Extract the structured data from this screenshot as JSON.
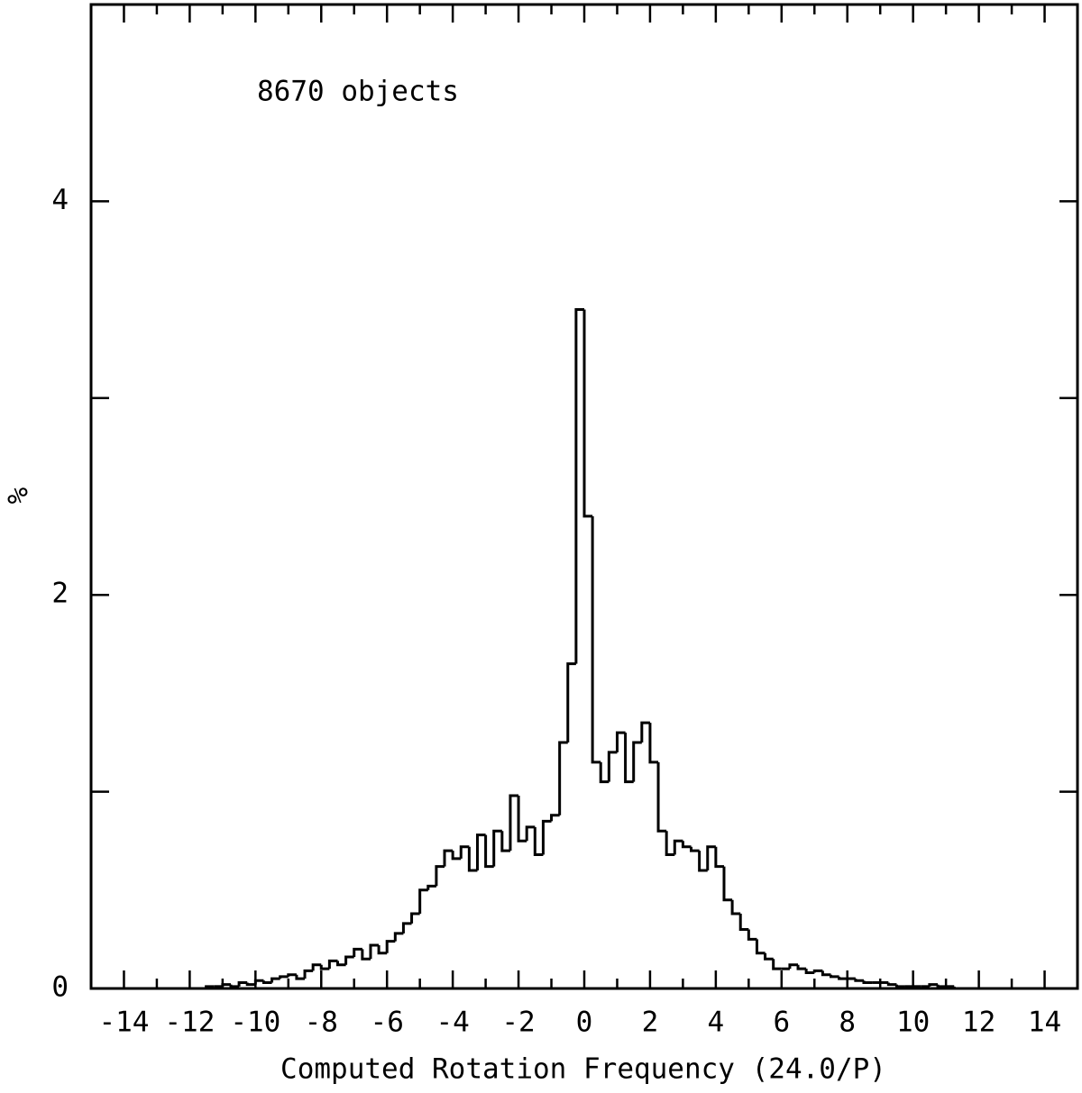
{
  "chart_data": {
    "type": "histogram",
    "xlabel": "Computed Rotation Frequency (24.0/P)",
    "ylabel": "%",
    "annotation": "8670 objects",
    "xlim": [
      -15,
      15
    ],
    "ylim": [
      0,
      5
    ],
    "xticks": [
      -14,
      -12,
      -10,
      -8,
      -6,
      -4,
      -2,
      0,
      2,
      4,
      6,
      8,
      10,
      12,
      14
    ],
    "xticks_minor": [
      -15,
      -13,
      -11,
      -9,
      -7,
      -5,
      -3,
      -1,
      1,
      3,
      5,
      7,
      9,
      11,
      13,
      15
    ],
    "yticks": [
      0,
      2,
      4
    ],
    "yticks_minor": [
      1,
      3
    ],
    "color": "#000000",
    "bins": [
      -12,
      -11.75,
      -11.5,
      -11.25,
      -11,
      -10.75,
      -10.5,
      -10.25,
      -10,
      -9.75,
      -9.5,
      -9.25,
      -9,
      -8.75,
      -8.5,
      -8.25,
      -8,
      -7.75,
      -7.5,
      -7.25,
      -7,
      -6.75,
      -6.5,
      -6.25,
      -6,
      -5.75,
      -5.5,
      -5.25,
      -5,
      -4.75,
      -4.5,
      -4.25,
      -4,
      -3.75,
      -3.5,
      -3.25,
      -3,
      -2.75,
      -2.5,
      -2.25,
      -2,
      -1.75,
      -1.5,
      -1.25,
      -1,
      -0.75,
      -0.5,
      -0.25,
      0,
      0.25,
      0.5,
      0.75,
      1,
      1.25,
      1.5,
      1.75,
      2,
      2.25,
      2.5,
      2.75,
      3,
      3.25,
      3.5,
      3.75,
      4,
      4.25,
      4.5,
      4.75,
      5,
      5.25,
      5.5,
      5.75,
      6,
      6.25,
      6.5,
      6.75,
      7,
      7.25,
      7.5,
      7.75,
      8,
      8.25,
      8.5,
      8.75,
      9,
      9.25,
      9.5,
      9.75,
      10,
      10.25,
      10.5,
      10.75,
      11,
      11.25,
      11.5,
      11.75,
      12
    ],
    "values": [
      0,
      0,
      0.01,
      0.01,
      0.02,
      0.01,
      0.03,
      0.02,
      0.04,
      0.03,
      0.05,
      0.06,
      0.07,
      0.05,
      0.09,
      0.12,
      0.1,
      0.14,
      0.12,
      0.16,
      0.2,
      0.15,
      0.22,
      0.18,
      0.24,
      0.28,
      0.33,
      0.38,
      0.5,
      0.52,
      0.62,
      0.7,
      0.66,
      0.72,
      0.6,
      0.78,
      0.62,
      0.8,
      0.7,
      0.98,
      0.75,
      0.82,
      0.68,
      0.85,
      0.88,
      1.25,
      1.65,
      3.45,
      2.4,
      1.15,
      1.05,
      1.2,
      1.3,
      1.05,
      1.25,
      1.35,
      1.15,
      0.8,
      0.68,
      0.75,
      0.72,
      0.7,
      0.6,
      0.72,
      0.62,
      0.45,
      0.38,
      0.3,
      0.25,
      0.18,
      0.15,
      0.1,
      0.1,
      0.12,
      0.1,
      0.08,
      0.09,
      0.07,
      0.06,
      0.05,
      0.05,
      0.04,
      0.03,
      0.03,
      0.03,
      0.02,
      0.01,
      0.01,
      0.01,
      0.01,
      0.02,
      0.01,
      0.01,
      0,
      0,
      0
    ]
  }
}
